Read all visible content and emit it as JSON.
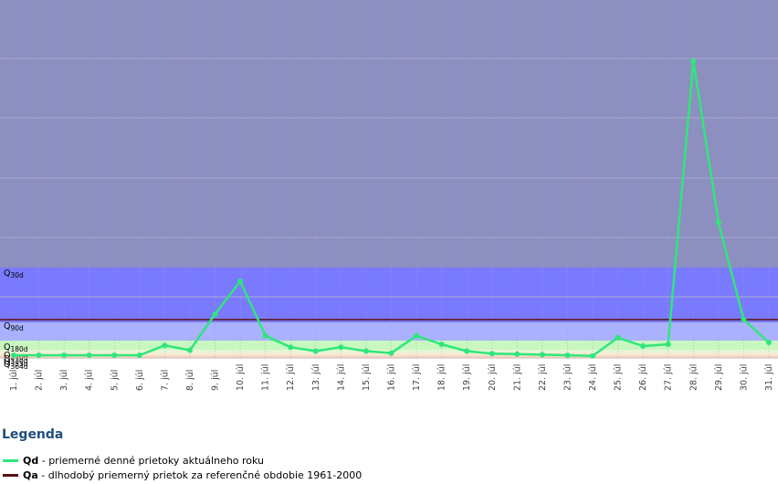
{
  "chart_data": {
    "type": "line",
    "categories": [
      "1. júl",
      "2. júl",
      "3. júl",
      "4. júl",
      "5. júl",
      "6. júl",
      "7. júl",
      "8. júl",
      "9. júl",
      "10. júl",
      "11. júl",
      "12. júl",
      "13. júl",
      "14. júl",
      "15. júl",
      "16. júl",
      "17. júl",
      "18. júl",
      "19. júl",
      "20. júl",
      "21. júl",
      "22. júl",
      "23. júl",
      "24. júl",
      "25. júl",
      "26. júl",
      "27. júl",
      "28. júl",
      "29. júl",
      "30. júl",
      "31. júl"
    ],
    "series": [
      {
        "name": "Qd",
        "color": "#2ee77a",
        "values": [
          0.04,
          0.04,
          0.04,
          0.04,
          0.04,
          0.04,
          0.27,
          0.14,
          1.15,
          1.75,
          0.56,
          0.22,
          0.12,
          0.22,
          0.12,
          0.08,
          0.56,
          0.3,
          0.12,
          0.07,
          0.06,
          0.05,
          0.04,
          0.03,
          0.5,
          0.25,
          0.3,
          9.8,
          3.7,
          1.05,
          0.35
        ]
      }
    ],
    "reference_lines": [
      {
        "name": "Qa",
        "value": 1.05,
        "color": "#5b0f0f"
      }
    ],
    "zones": [
      {
        "label": "Q30d",
        "main": "Q",
        "sub": "30d",
        "from": 2.0,
        "to": 30,
        "color": "#8c8fbf"
      },
      {
        "label": "Q90d",
        "main": "Q",
        "sub": "90d",
        "from": 1.0,
        "to": 2.0,
        "color": "#7a7aff"
      },
      {
        "label": "Q180d",
        "main": "Q",
        "sub": "180d",
        "from": 0.4,
        "to": 1.0,
        "color": "#aab2ff"
      },
      {
        "label": "Q270d",
        "main": "Q",
        "sub": "270d",
        "from": 0.15,
        "to": 0.4,
        "color": "#c8f7c0"
      },
      {
        "label": "Q330d",
        "main": "Q",
        "sub": "330d",
        "from": 0.09,
        "to": 0.15,
        "color": "#e6f5d6"
      },
      {
        "label": "Q355d",
        "main": "Q",
        "sub": "355d",
        "from": 0.04,
        "to": 0.09,
        "color": "#f2ecd2"
      },
      {
        "label": "Q364d",
        "main": "Q",
        "sub": "364d",
        "from": 0.0,
        "to": 0.04,
        "color": "#f4d9c8"
      }
    ],
    "ylim": [
      0,
      12
    ],
    "grid": true,
    "title": "",
    "xlabel": "",
    "ylabel": ""
  },
  "legend": {
    "title": "Legenda",
    "items": [
      {
        "key": "Qd",
        "text": " - priemerné denné prietoky aktuálneho roku",
        "color": "#2ee77a"
      },
      {
        "key": "Qa",
        "text": " - dlhodobý priemerný prietok za referenčné obdobie 1961-2000",
        "color": "#5b0f0f"
      }
    ]
  }
}
